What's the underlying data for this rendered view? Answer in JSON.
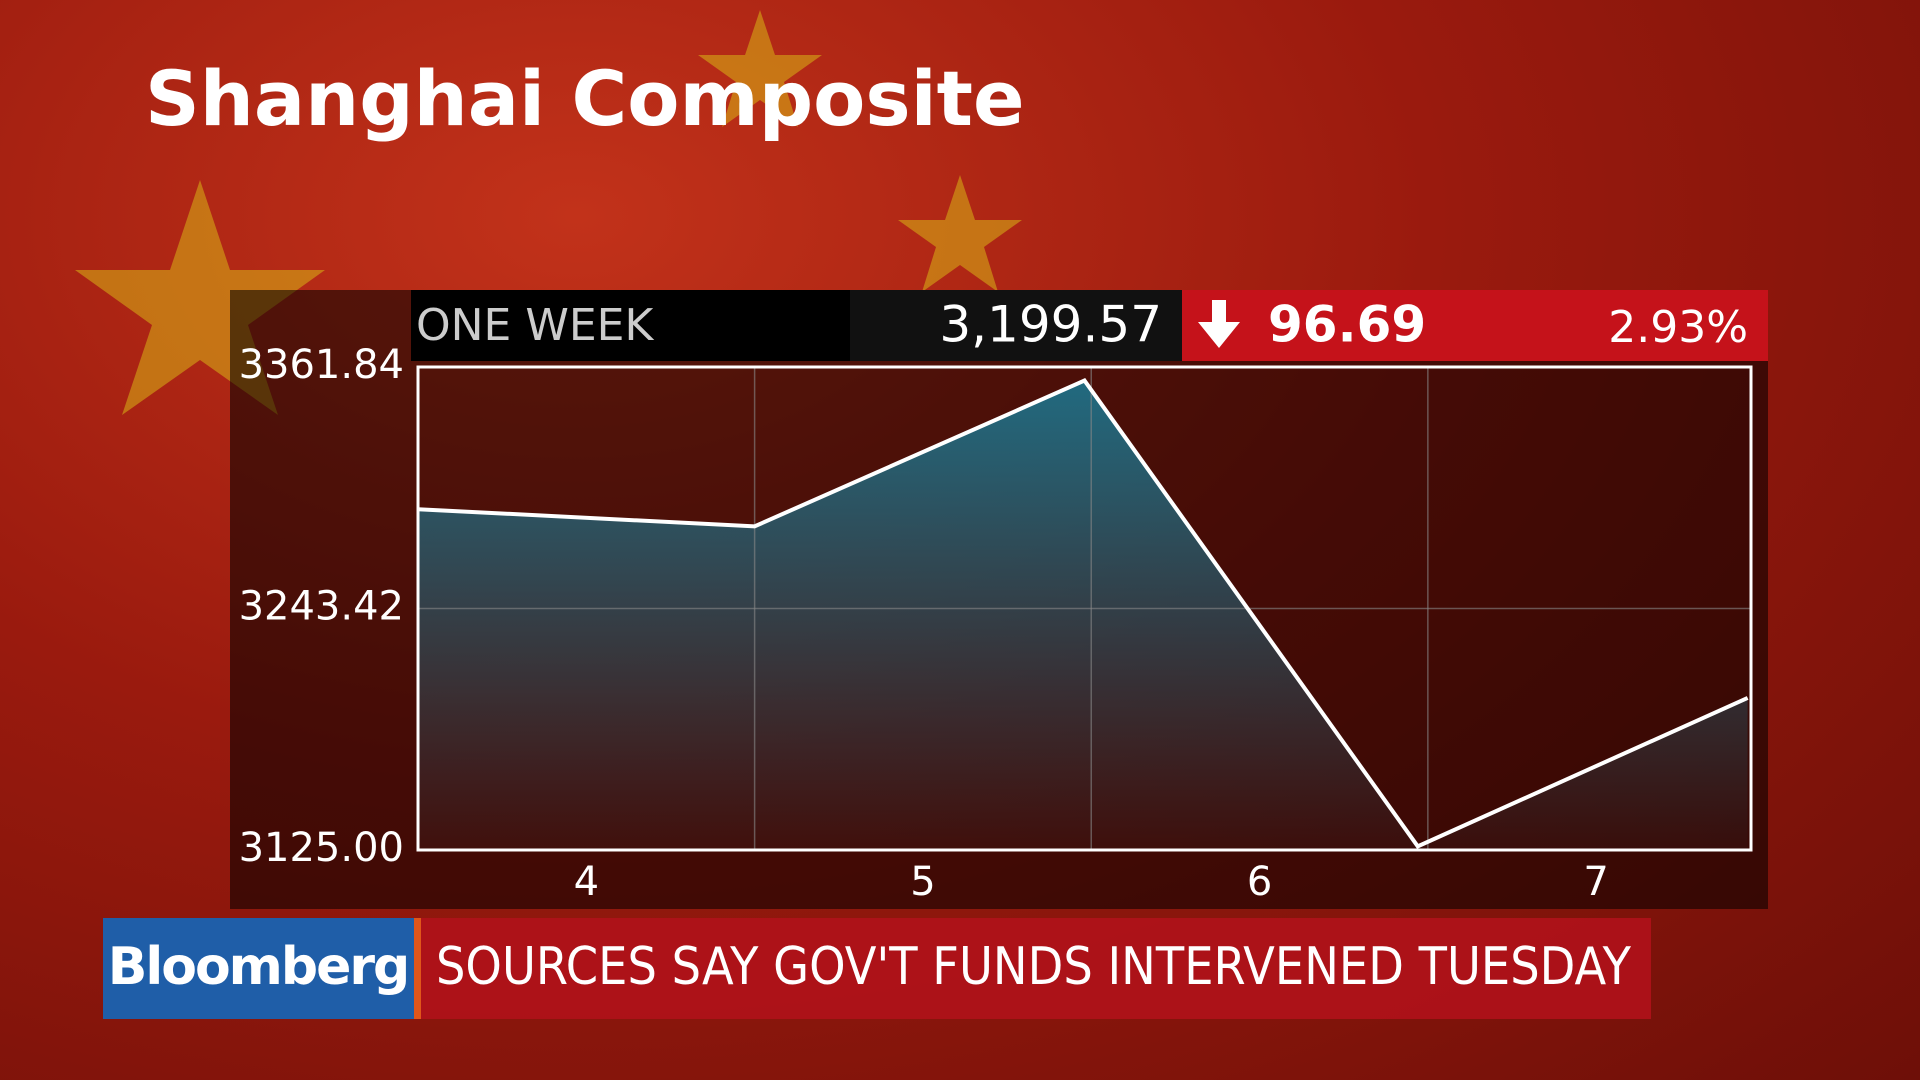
{
  "chart_data": {
    "type": "line",
    "title": "Shanghai Composite",
    "header": {
      "period": "ONE WEEK",
      "last": "3,199.57",
      "change": "96.69",
      "change_pct": "2.93%",
      "direction": "down"
    },
    "x": [
      3.5,
      4.5,
      5.48,
      6.47,
      7.45
    ],
    "values": [
      3292.1,
      3283.7,
      3355.2,
      3126.8,
      3199.57
    ],
    "color": "#ffffff",
    "fill_color": "#1f6f86",
    "xlim": [
      3.5,
      7.46
    ],
    "xticks": [
      4,
      5,
      6,
      7
    ],
    "xgrid": [
      4.5,
      5.5,
      6.5
    ],
    "ylim": [
      3125,
      3361.84
    ],
    "yticks": [
      {
        "value": 3125,
        "label": "3125.00"
      },
      3243.42,
      3361.84
    ],
    "grid": true
  },
  "ticker": {
    "brand": "Bloomberg",
    "headline": "SOURCES SAY GOV'T FUNDS INTERVENED TUESDAY"
  }
}
